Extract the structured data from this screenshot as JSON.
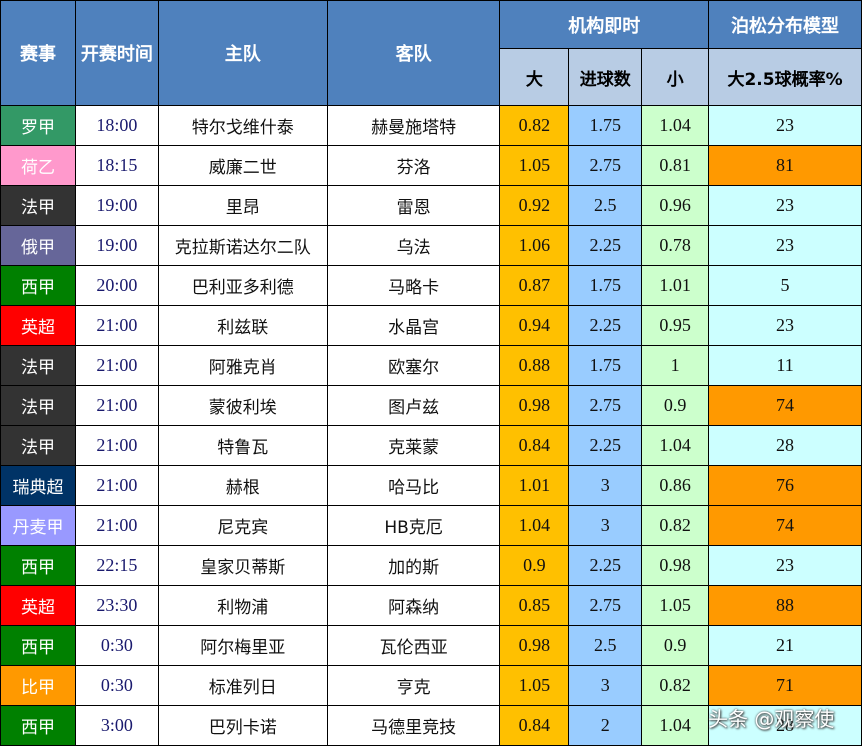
{
  "header": {
    "league": "赛事",
    "kickoff": "开赛时间",
    "home": "主队",
    "away": "客队",
    "bookmaker_group": "机构即时",
    "poisson_group": "泊松分布模型",
    "over": "大",
    "line": "进球数",
    "under": "小",
    "over25_prob": "大2.5球概率%"
  },
  "colors": {
    "header_blue": "#4f81bd",
    "subheader": "#b8cce4",
    "over_col": "#ffc000",
    "line_col": "#99ccff",
    "under_col": "#ccffcc",
    "prob_low": "#ccffff",
    "prob_high": "#ff9900"
  },
  "rows": [
    {
      "league": "罗甲",
      "league_color": "#339966",
      "time": "18:00",
      "home": "特尔戈维什泰",
      "away": "赫曼施塔特",
      "over": "0.82",
      "line": "1.75",
      "under": "1.04",
      "prob": "23",
      "prob_high": false
    },
    {
      "league": "荷乙",
      "league_color": "#ff99cc",
      "time": "18:15",
      "home": "威廉二世",
      "away": "芬洛",
      "over": "1.05",
      "line": "2.75",
      "under": "0.81",
      "prob": "81",
      "prob_high": true
    },
    {
      "league": "法甲",
      "league_color": "#333333",
      "time": "19:00",
      "home": "里昂",
      "away": "雷恩",
      "over": "0.92",
      "line": "2.5",
      "under": "0.96",
      "prob": "23",
      "prob_high": false
    },
    {
      "league": "俄甲",
      "league_color": "#666699",
      "time": "19:00",
      "home": "克拉斯诺达尔二队",
      "away": "乌法",
      "over": "1.06",
      "line": "2.25",
      "under": "0.78",
      "prob": "23",
      "prob_high": false
    },
    {
      "league": "西甲",
      "league_color": "#008000",
      "time": "20:00",
      "home": "巴利亚多利德",
      "away": "马略卡",
      "over": "0.87",
      "line": "1.75",
      "under": "1.01",
      "prob": "5",
      "prob_high": false
    },
    {
      "league": "英超",
      "league_color": "#ff0000",
      "time": "21:00",
      "home": "利兹联",
      "away": "水晶宫",
      "over": "0.94",
      "line": "2.25",
      "under": "0.95",
      "prob": "23",
      "prob_high": false
    },
    {
      "league": "法甲",
      "league_color": "#333333",
      "time": "21:00",
      "home": "阿雅克肖",
      "away": "欧塞尔",
      "over": "0.88",
      "line": "1.75",
      "under": "1",
      "prob": "11",
      "prob_high": false
    },
    {
      "league": "法甲",
      "league_color": "#333333",
      "time": "21:00",
      "home": "蒙彼利埃",
      "away": "图卢兹",
      "over": "0.98",
      "line": "2.75",
      "under": "0.9",
      "prob": "74",
      "prob_high": true
    },
    {
      "league": "法甲",
      "league_color": "#333333",
      "time": "21:00",
      "home": "特鲁瓦",
      "away": "克莱蒙",
      "over": "0.84",
      "line": "2.25",
      "under": "1.04",
      "prob": "28",
      "prob_high": false
    },
    {
      "league": "瑞典超",
      "league_color": "#003366",
      "time": "21:00",
      "home": "赫根",
      "away": "哈马比",
      "over": "1.01",
      "line": "3",
      "under": "0.86",
      "prob": "76",
      "prob_high": true
    },
    {
      "league": "丹麦甲",
      "league_color": "#9999ff",
      "time": "21:00",
      "home": "尼克宾",
      "away": "HB克厄",
      "over": "1.04",
      "line": "3",
      "under": "0.82",
      "prob": "74",
      "prob_high": true
    },
    {
      "league": "西甲",
      "league_color": "#008000",
      "time": "22:15",
      "home": "皇家贝蒂斯",
      "away": "加的斯",
      "over": "0.9",
      "line": "2.25",
      "under": "0.98",
      "prob": "23",
      "prob_high": false
    },
    {
      "league": "英超",
      "league_color": "#ff0000",
      "time": "23:30",
      "home": "利物浦",
      "away": "阿森纳",
      "over": "0.85",
      "line": "2.75",
      "under": "1.05",
      "prob": "88",
      "prob_high": true
    },
    {
      "league": "西甲",
      "league_color": "#008000",
      "time": "0:30",
      "home": "阿尔梅里亚",
      "away": "瓦伦西亚",
      "over": "0.98",
      "line": "2.5",
      "under": "0.9",
      "prob": "21",
      "prob_high": false
    },
    {
      "league": "比甲",
      "league_color": "#ff9900",
      "time": "0:30",
      "home": "标准列日",
      "away": "亨克",
      "over": "1.05",
      "line": "3",
      "under": "0.82",
      "prob": "71",
      "prob_high": true
    },
    {
      "league": "西甲",
      "league_color": "#008000",
      "time": "3:00",
      "home": "巴列卡诺",
      "away": "马德里竞技",
      "over": "0.84",
      "line": "2",
      "under": "1.04",
      "prob": "28",
      "prob_high": false
    }
  ],
  "watermark": "头条 @观察使"
}
